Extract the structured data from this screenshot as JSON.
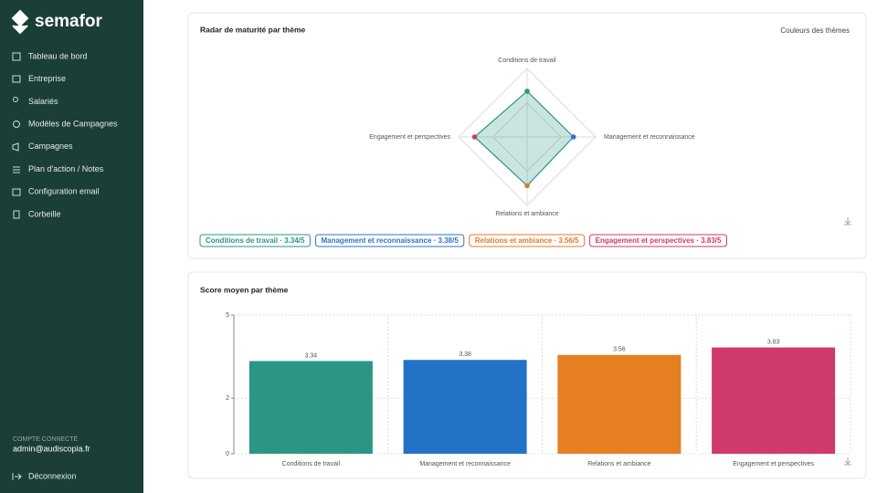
{
  "sidebar": {
    "brand": "semafor",
    "nav": [
      "Tableau de bord",
      "Entreprise",
      "Salariés",
      "Modèles de Campagnes",
      "Campagnes",
      "Plan d'action / Notes",
      "Configuration email",
      "Corbeille"
    ],
    "account_label": "COMPTE CONNECTÉ",
    "account_email": "admin@audiscopia.fr",
    "logout": "Déconnexion"
  },
  "chart_data": [
    {
      "type": "radar",
      "title": "Radar de maturité par thème",
      "link": "Couleurs des thèmes",
      "categories": [
        "Conditions de travail",
        "Management et reconnaissance",
        "Relations et ambiance",
        "Engagement et perspectives"
      ],
      "values": [
        3.34,
        3.38,
        3.56,
        3.83
      ],
      "value_labels": [
        "Conditions de travail · 3.34/5",
        "Management et reconnaissance · 3.38/5",
        "Relations et ambiance · 3.56/5",
        "Engagement et perspectives · 3.83/5"
      ],
      "colors": [
        "#2a9683",
        "#2f72c8",
        "#e07a2a",
        "#cf3a6a"
      ],
      "fill": "#2a9683",
      "rlim": [
        0,
        5
      ]
    },
    {
      "type": "bar",
      "title": "Score moyen par thème",
      "categories": [
        "Conditions de travail",
        "Management et reconnaissance",
        "Relations et ambiance",
        "Engagement et perspectives"
      ],
      "values": [
        3.34,
        3.38,
        3.56,
        3.83
      ],
      "colors": [
        "#2a9683",
        "#2272c8",
        "#e67e22",
        "#d03a6a"
      ],
      "ylim": [
        0,
        5
      ],
      "yticks": [
        0,
        2,
        5
      ],
      "grid": true
    }
  ]
}
